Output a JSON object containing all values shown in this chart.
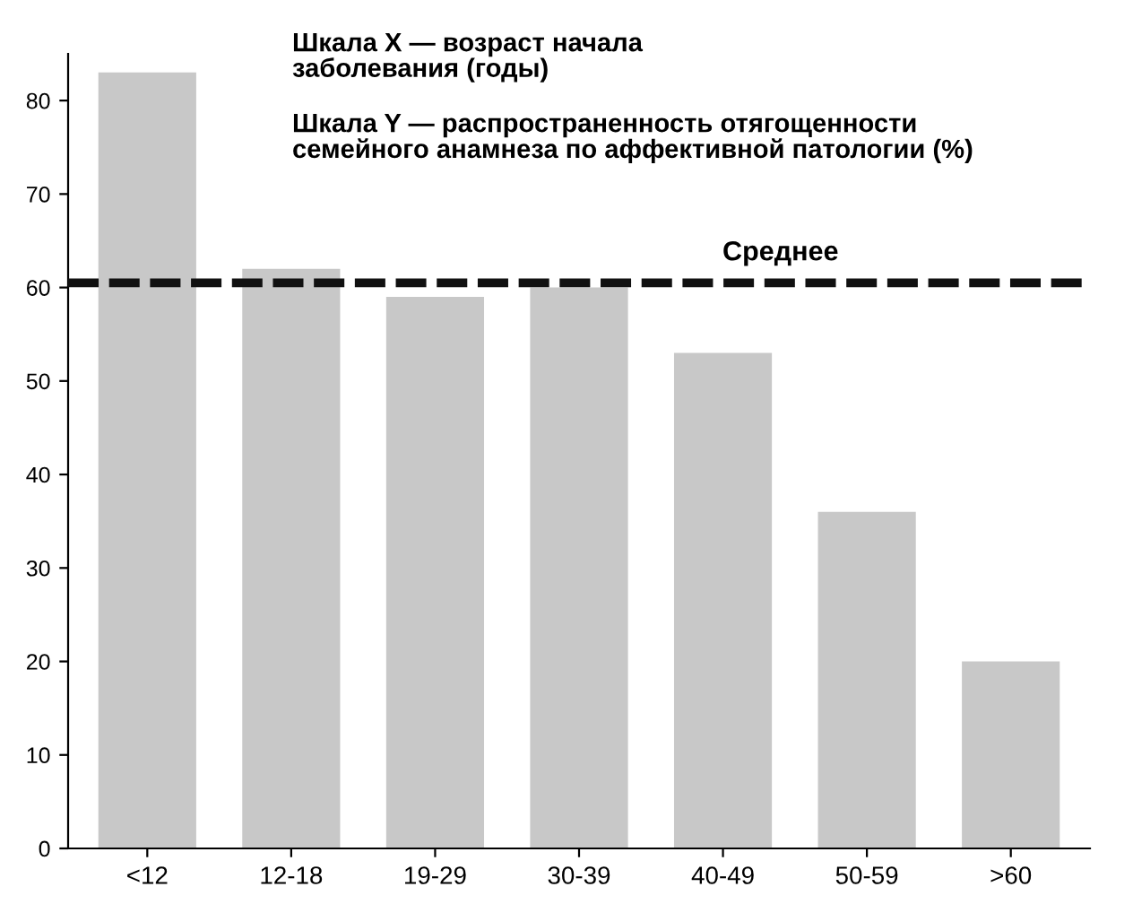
{
  "chart_data": {
    "type": "bar",
    "categories": [
      "<12",
      "12-18",
      "19-29",
      "30-39",
      "40-49",
      "50-59",
      ">60"
    ],
    "values": [
      83,
      62,
      59,
      60,
      53,
      36,
      20
    ],
    "color": "#c8c8c8",
    "ylim": [
      0,
      85
    ],
    "yticks": [
      0,
      10,
      20,
      30,
      40,
      50,
      60,
      70,
      80
    ],
    "grid": false,
    "ref_lines": [
      {
        "axis": "y",
        "value": 60.5,
        "label": "Среднее",
        "color": "#111111",
        "line_style": "dashed"
      }
    ],
    "annotations": [
      "Шкала X — возраст начала\nзаболевания (годы)",
      "Шкала Y — распространенность отягощенности\nсемейного анамнеза по аффективной патологии (%)"
    ]
  }
}
